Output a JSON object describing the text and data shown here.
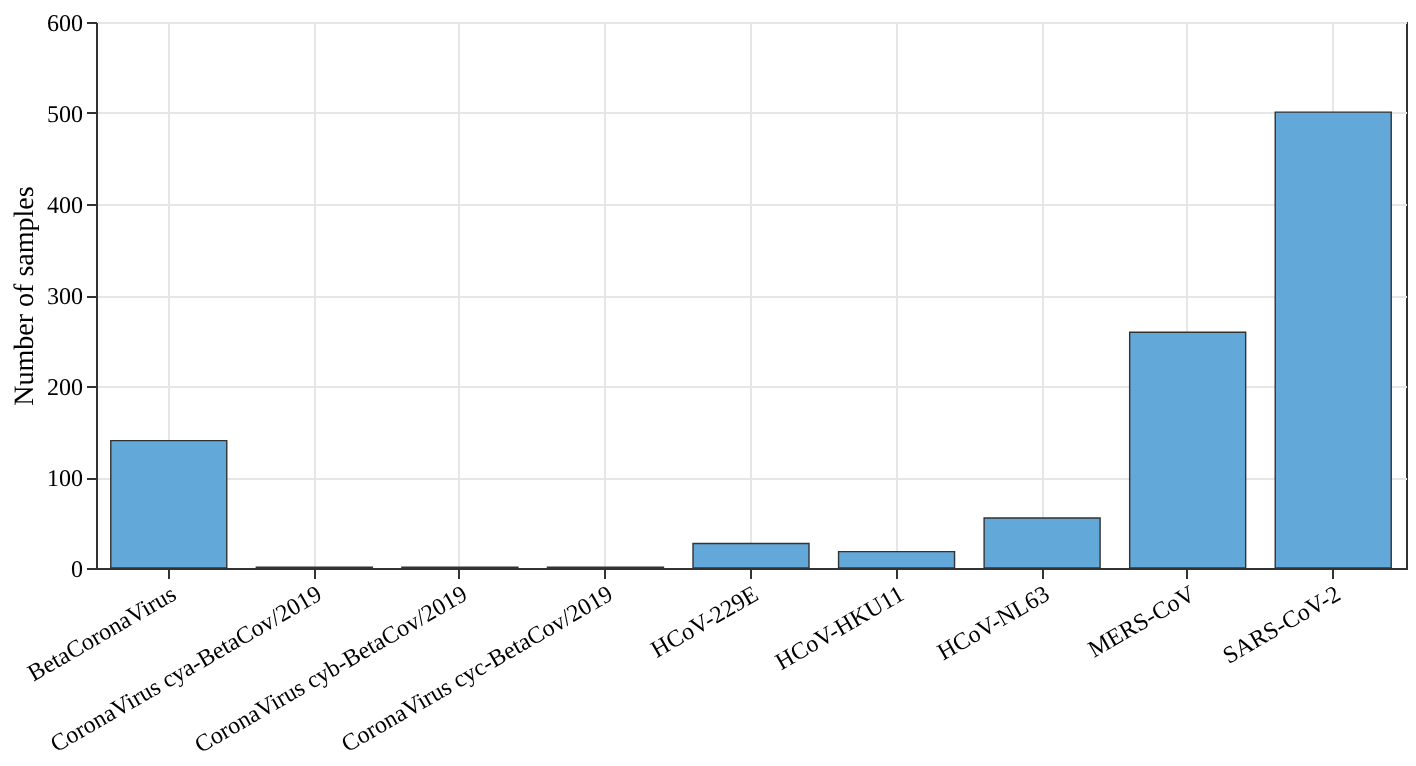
{
  "chart_data": {
    "type": "bar",
    "ylabel": "Number of samples",
    "categories": [
      "BetaCoronaVirus",
      "CoronaVirus cya-BetaCov/2019",
      "CoronaVirus cyb-BetaCov/2019",
      "CoronaVirus cyc-BetaCov/2019",
      "HCoV-229E",
      "HCoV-HKU11",
      "HCoV-NL63",
      "MERS-CoV",
      "SARS-CoV-2"
    ],
    "values": [
      140,
      1,
      1,
      1,
      27,
      18,
      55,
      259,
      501
    ],
    "color": "#62a8d8",
    "ylim": [
      0,
      600
    ],
    "yticks": [
      0,
      100,
      200,
      300,
      400,
      500,
      600
    ],
    "grid": true
  }
}
